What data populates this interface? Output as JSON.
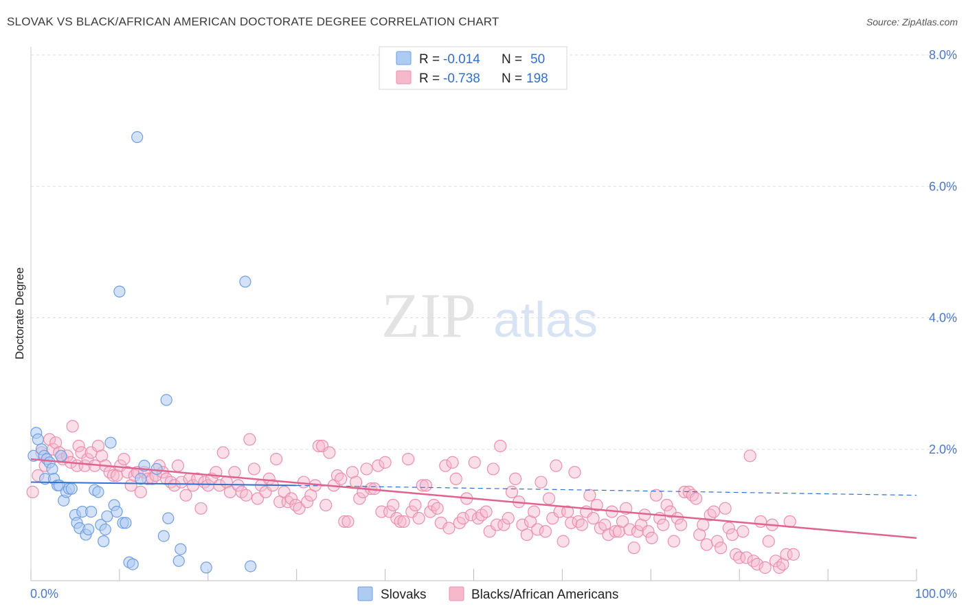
{
  "title": "SLOVAK VS BLACK/AFRICAN AMERICAN DOCTORATE DEGREE CORRELATION CHART",
  "source": "Source: ZipAtlas.com",
  "watermark": {
    "zip": "ZIP",
    "atlas": "atlas"
  },
  "legend_top": [
    {
      "r_label": "R =",
      "r_value": "-0.014",
      "n_label": "N =",
      "n_value": "50"
    },
    {
      "r_label": "R =",
      "r_value": "-0.738",
      "n_label": "N =",
      "n_value": "198"
    }
  ],
  "legend_bottom": [
    "Slovaks",
    "Blacks/African Americans"
  ],
  "colors": {
    "slovak_fill": "#aecbf2",
    "slovak_stroke": "#6f9ee0",
    "slovak_line": "#2f6fd0",
    "black_fill": "#f6b8cb",
    "black_stroke": "#ea8fae",
    "black_line": "#e0628f",
    "tick_text": "#4a78c8",
    "grid": "#dddddd"
  },
  "chart_data": {
    "type": "scatter",
    "title": "SLOVAK VS BLACK/AFRICAN AMERICAN DOCTORATE DEGREE CORRELATION CHART",
    "xlabel": "",
    "ylabel": "Doctorate Degree",
    "xlim": [
      0,
      100
    ],
    "ylim": [
      0,
      8.0
    ],
    "x_tick_labels": [
      "0.0%",
      "100.0%"
    ],
    "y_ticks": [
      2.0,
      4.0,
      6.0,
      8.0
    ],
    "y_tick_labels": [
      "2.0%",
      "4.0%",
      "6.0%",
      "8.0%"
    ],
    "grid": true,
    "legend_placement": "top-center",
    "series": [
      {
        "name": "Slovaks",
        "r": -0.014,
        "n": 50,
        "trend": {
          "x": [
            0,
            30,
            100
          ],
          "y": [
            1.5,
            1.45,
            1.3
          ],
          "solid_until": 30
        },
        "points": [
          [
            0.3,
            1.9
          ],
          [
            0.6,
            2.25
          ],
          [
            0.8,
            2.15
          ],
          [
            1.2,
            2.0
          ],
          [
            1.5,
            1.9
          ],
          [
            1.6,
            1.55
          ],
          [
            1.8,
            1.85
          ],
          [
            2.1,
            1.8
          ],
          [
            2.4,
            1.7
          ],
          [
            2.6,
            1.55
          ],
          [
            3.0,
            1.45
          ],
          [
            3.2,
            1.45
          ],
          [
            3.4,
            1.9
          ],
          [
            3.7,
            1.22
          ],
          [
            4.0,
            1.35
          ],
          [
            4.3,
            1.4
          ],
          [
            4.6,
            1.4
          ],
          [
            5.0,
            1.0
          ],
          [
            5.2,
            0.88
          ],
          [
            5.5,
            0.8
          ],
          [
            5.8,
            1.05
          ],
          [
            6.2,
            0.7
          ],
          [
            6.5,
            0.78
          ],
          [
            6.8,
            1.05
          ],
          [
            7.2,
            1.38
          ],
          [
            7.6,
            1.35
          ],
          [
            7.9,
            0.85
          ],
          [
            8.2,
            0.6
          ],
          [
            8.4,
            0.78
          ],
          [
            8.6,
            0.98
          ],
          [
            9.0,
            2.1
          ],
          [
            9.4,
            1.15
          ],
          [
            9.7,
            1.05
          ],
          [
            10.0,
            4.4
          ],
          [
            10.4,
            0.88
          ],
          [
            10.7,
            0.88
          ],
          [
            11.1,
            0.28
          ],
          [
            11.5,
            0.25
          ],
          [
            12.0,
            6.75
          ],
          [
            12.4,
            1.55
          ],
          [
            12.8,
            1.75
          ],
          [
            14.2,
            1.7
          ],
          [
            15.0,
            0.68
          ],
          [
            15.3,
            2.75
          ],
          [
            15.5,
            0.95
          ],
          [
            16.7,
            0.3
          ],
          [
            16.9,
            0.48
          ],
          [
            19.8,
            0.2
          ],
          [
            24.2,
            4.55
          ],
          [
            24.8,
            0.22
          ]
        ]
      },
      {
        "name": "Blacks/African Americans",
        "r": -0.738,
        "n": 198,
        "trend": {
          "x": [
            0,
            100
          ],
          "y": [
            1.85,
            0.65
          ]
        },
        "points": [
          [
            0.2,
            1.35
          ],
          [
            0.8,
            1.6
          ],
          [
            1.2,
            1.95
          ],
          [
            1.6,
            1.75
          ],
          [
            2.1,
            2.15
          ],
          [
            2.5,
            2.0
          ],
          [
            2.8,
            2.1
          ],
          [
            3.2,
            1.95
          ],
          [
            3.6,
            1.85
          ],
          [
            4.1,
            1.9
          ],
          [
            4.5,
            1.8
          ],
          [
            4.7,
            2.35
          ],
          [
            5.2,
            1.75
          ],
          [
            5.4,
            2.05
          ],
          [
            5.7,
            1.95
          ],
          [
            6.1,
            1.75
          ],
          [
            6.4,
            1.85
          ],
          [
            6.8,
            1.95
          ],
          [
            7.2,
            1.75
          ],
          [
            7.6,
            2.05
          ],
          [
            8.0,
            1.9
          ],
          [
            8.4,
            1.75
          ],
          [
            8.9,
            1.65
          ],
          [
            9.3,
            1.6
          ],
          [
            9.7,
            1.6
          ],
          [
            10.1,
            1.75
          ],
          [
            10.5,
            1.85
          ],
          [
            10.9,
            1.65
          ],
          [
            11.3,
            1.45
          ],
          [
            11.7,
            1.6
          ],
          [
            12.0,
            1.65
          ],
          [
            12.4,
            1.35
          ],
          [
            12.8,
            1.65
          ],
          [
            13.2,
            1.55
          ],
          [
            13.7,
            1.55
          ],
          [
            14.1,
            1.6
          ],
          [
            14.5,
            1.75
          ],
          [
            14.9,
            1.65
          ],
          [
            15.3,
            1.55
          ],
          [
            15.8,
            1.5
          ],
          [
            16.2,
            1.45
          ],
          [
            16.6,
            1.75
          ],
          [
            17.0,
            1.5
          ],
          [
            17.5,
            1.3
          ],
          [
            17.9,
            1.55
          ],
          [
            18.3,
            1.45
          ],
          [
            18.8,
            1.55
          ],
          [
            19.2,
            1.1
          ],
          [
            19.6,
            1.5
          ],
          [
            20.0,
            1.45
          ],
          [
            20.4,
            1.55
          ],
          [
            20.9,
            1.65
          ],
          [
            21.3,
            1.45
          ],
          [
            21.7,
            1.95
          ],
          [
            22.1,
            1.5
          ],
          [
            22.5,
            1.35
          ],
          [
            23.0,
            1.65
          ],
          [
            23.4,
            1.45
          ],
          [
            23.8,
            1.35
          ],
          [
            24.3,
            1.3
          ],
          [
            24.7,
            2.15
          ],
          [
            25.2,
            1.7
          ],
          [
            25.6,
            1.25
          ],
          [
            26.0,
            1.45
          ],
          [
            26.5,
            1.35
          ],
          [
            26.9,
            1.55
          ],
          [
            27.3,
            1.45
          ],
          [
            27.7,
            1.85
          ],
          [
            28.1,
            1.2
          ],
          [
            28.6,
            1.35
          ],
          [
            29.0,
            1.2
          ],
          [
            29.4,
            1.25
          ],
          [
            29.9,
            1.15
          ],
          [
            30.3,
            1.1
          ],
          [
            30.8,
            1.5
          ],
          [
            31.2,
            1.2
          ],
          [
            31.6,
            1.3
          ],
          [
            32.1,
            1.45
          ],
          [
            32.5,
            2.05
          ],
          [
            32.9,
            2.05
          ],
          [
            33.3,
            1.15
          ],
          [
            33.7,
            1.95
          ],
          [
            34.2,
            1.45
          ],
          [
            34.6,
            1.6
          ],
          [
            35.0,
            1.55
          ],
          [
            35.4,
            0.9
          ],
          [
            35.8,
            0.9
          ],
          [
            36.3,
            1.65
          ],
          [
            36.7,
            1.5
          ],
          [
            37.1,
            1.25
          ],
          [
            37.5,
            1.35
          ],
          [
            37.9,
            1.7
          ],
          [
            38.4,
            1.4
          ],
          [
            38.8,
            1.4
          ],
          [
            39.2,
            1.75
          ],
          [
            39.6,
            1.05
          ],
          [
            40.0,
            1.8
          ],
          [
            40.5,
            1.05
          ],
          [
            40.9,
            1.15
          ],
          [
            41.3,
            0.95
          ],
          [
            41.7,
            0.9
          ],
          [
            42.1,
            0.9
          ],
          [
            42.6,
            1.85
          ],
          [
            43.0,
            1.05
          ],
          [
            43.4,
            1.15
          ],
          [
            43.8,
            0.95
          ],
          [
            44.2,
            1.45
          ],
          [
            44.6,
            1.45
          ],
          [
            45.1,
            1.05
          ],
          [
            45.5,
            1.15
          ],
          [
            45.9,
            1.1
          ],
          [
            46.3,
            0.88
          ],
          [
            46.8,
            1.75
          ],
          [
            47.2,
            0.8
          ],
          [
            47.6,
            1.8
          ],
          [
            48.0,
            1.55
          ],
          [
            48.4,
            0.88
          ],
          [
            48.8,
            0.95
          ],
          [
            49.2,
            1.25
          ],
          [
            49.7,
            1.0
          ],
          [
            50.1,
            1.8
          ],
          [
            50.5,
            0.95
          ],
          [
            50.9,
            1.0
          ],
          [
            51.4,
            1.05
          ],
          [
            51.8,
            0.75
          ],
          [
            52.2,
            1.7
          ],
          [
            52.6,
            0.85
          ],
          [
            53.0,
            2.05
          ],
          [
            53.4,
            0.85
          ],
          [
            53.9,
            0.95
          ],
          [
            54.3,
            1.35
          ],
          [
            54.7,
            1.55
          ],
          [
            55.1,
            1.2
          ],
          [
            55.5,
            0.85
          ],
          [
            56.0,
            0.7
          ],
          [
            56.4,
            0.9
          ],
          [
            56.8,
            1.05
          ],
          [
            57.2,
            0.78
          ],
          [
            57.6,
            1.5
          ],
          [
            58.1,
            0.75
          ],
          [
            58.5,
            1.25
          ],
          [
            58.9,
            0.95
          ],
          [
            59.3,
            1.75
          ],
          [
            59.7,
            1.05
          ],
          [
            60.1,
            0.6
          ],
          [
            60.6,
            1.05
          ],
          [
            61.0,
            0.88
          ],
          [
            61.4,
            1.65
          ],
          [
            61.8,
            0.9
          ],
          [
            62.2,
            0.85
          ],
          [
            62.7,
            1.05
          ],
          [
            63.1,
            1.3
          ],
          [
            63.5,
            0.95
          ],
          [
            63.9,
            1.15
          ],
          [
            64.3,
            0.8
          ],
          [
            64.8,
            0.85
          ],
          [
            65.2,
            0.7
          ],
          [
            65.6,
            1.05
          ],
          [
            66.0,
            0.75
          ],
          [
            66.4,
            0.75
          ],
          [
            66.8,
            0.9
          ],
          [
            67.2,
            1.1
          ],
          [
            67.6,
            0.78
          ],
          [
            68.1,
            0.5
          ],
          [
            68.5,
            0.75
          ],
          [
            68.9,
            0.85
          ],
          [
            69.3,
            1.0
          ],
          [
            69.7,
            0.75
          ],
          [
            70.1,
            0.65
          ],
          [
            70.6,
            1.3
          ],
          [
            71.0,
            0.95
          ],
          [
            71.4,
            0.85
          ],
          [
            71.8,
            1.15
          ],
          [
            72.2,
            1.05
          ],
          [
            72.6,
            0.6
          ],
          [
            73.0,
            0.95
          ],
          [
            73.4,
            0.85
          ],
          [
            73.8,
            1.35
          ],
          [
            74.3,
            1.35
          ],
          [
            74.7,
            1.3
          ],
          [
            75.1,
            1.25
          ],
          [
            75.5,
            0.7
          ],
          [
            75.9,
            0.85
          ],
          [
            76.3,
            0.55
          ],
          [
            76.7,
            1.0
          ],
          [
            77.1,
            1.05
          ],
          [
            77.5,
            0.6
          ],
          [
            77.9,
            0.5
          ],
          [
            78.4,
            1.1
          ],
          [
            78.8,
            0.8
          ],
          [
            79.2,
            0.7
          ],
          [
            79.6,
            0.4
          ],
          [
            80.0,
            0.35
          ],
          [
            80.4,
            0.75
          ],
          [
            80.8,
            0.35
          ],
          [
            81.2,
            1.9
          ],
          [
            81.6,
            0.3
          ],
          [
            82.0,
            0.25
          ],
          [
            82.4,
            0.9
          ],
          [
            82.9,
            0.2
          ],
          [
            83.3,
            0.6
          ],
          [
            83.7,
            0.85
          ],
          [
            84.1,
            0.3
          ],
          [
            84.5,
            0.2
          ],
          [
            84.9,
            0.25
          ],
          [
            85.3,
            0.4
          ],
          [
            85.7,
            0.9
          ],
          [
            86.1,
            0.4
          ]
        ]
      }
    ]
  }
}
